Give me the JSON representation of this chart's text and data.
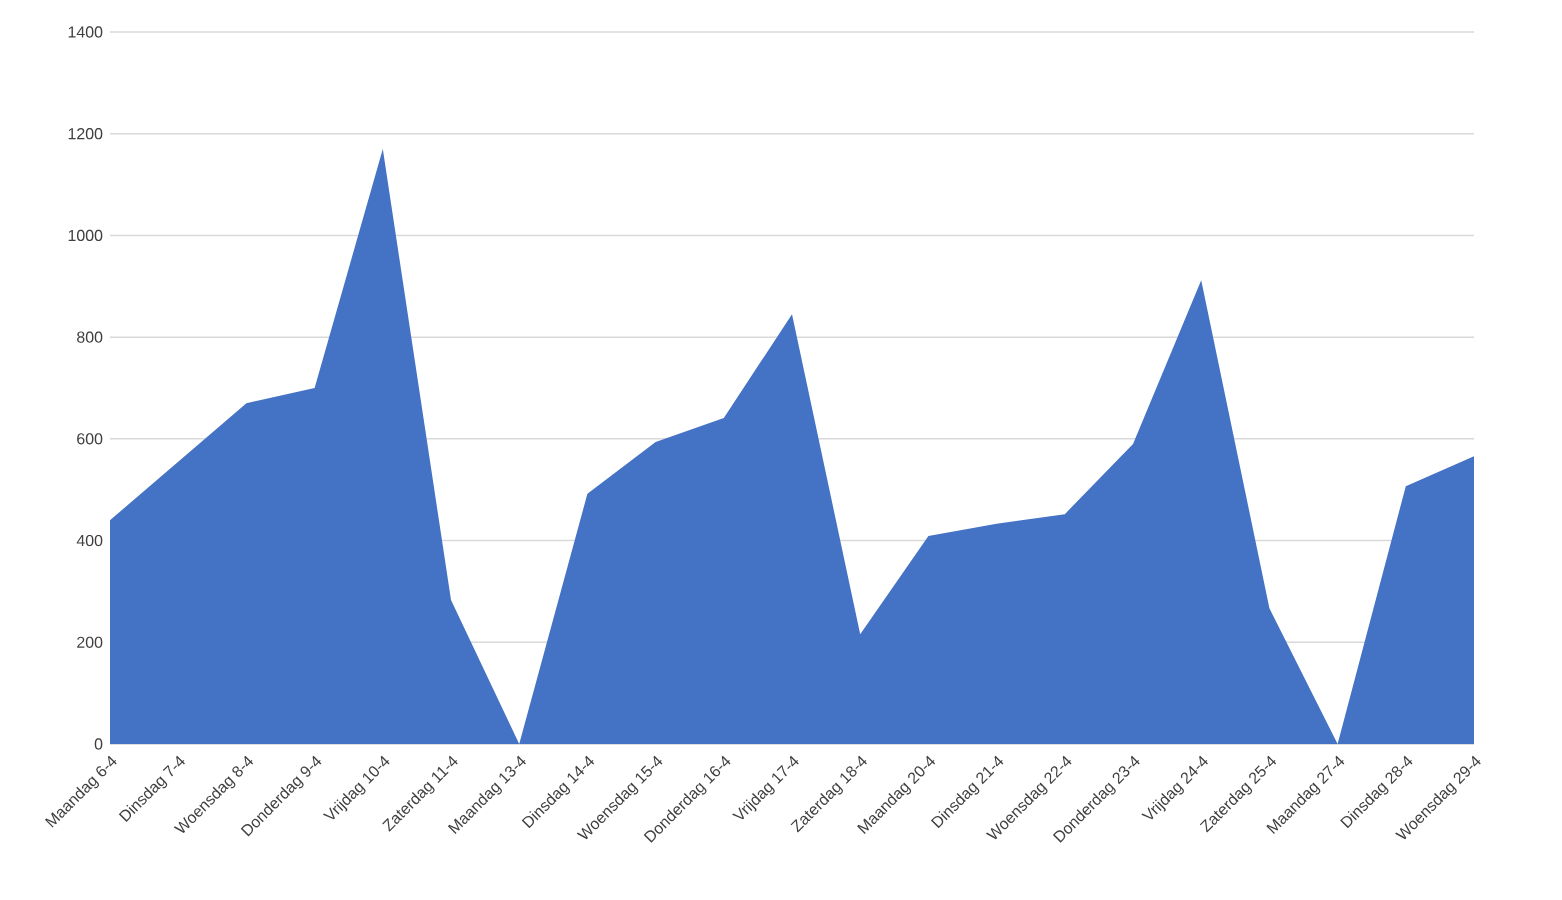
{
  "chart_data": {
    "type": "area",
    "categories": [
      "Maandag 6-4",
      "Dinsdag 7-4",
      "Woensdag 8-4",
      "Donderdag 9-4",
      "Vrijdag 10-4",
      "Zaterdag 11-4",
      "Maandag 13-4",
      "Dinsdag 14-4",
      "Woensdag 15-4",
      "Donderdag 16-4",
      "Vrijdag 17-4",
      "Zaterdag 18-4",
      "Maandag 20-4",
      "Dinsdag 21-4",
      "Woensdag 22-4",
      "Donderdag 23-4",
      "Vrijdag 24-4",
      "Zaterdag 25-4",
      "Maandag 27-4",
      "Dinsdag 28-4",
      "Woensdag 29-4"
    ],
    "values": [
      440,
      555,
      670,
      700,
      1170,
      283,
      0,
      492,
      594,
      641,
      845,
      216,
      409,
      433,
      452,
      590,
      912,
      267,
      0,
      507,
      566
    ],
    "color": "#4472c4",
    "ylim": [
      0,
      1400
    ],
    "yticks": [
      0,
      200,
      400,
      600,
      800,
      1000,
      1200,
      1400
    ],
    "grid": "y"
  }
}
